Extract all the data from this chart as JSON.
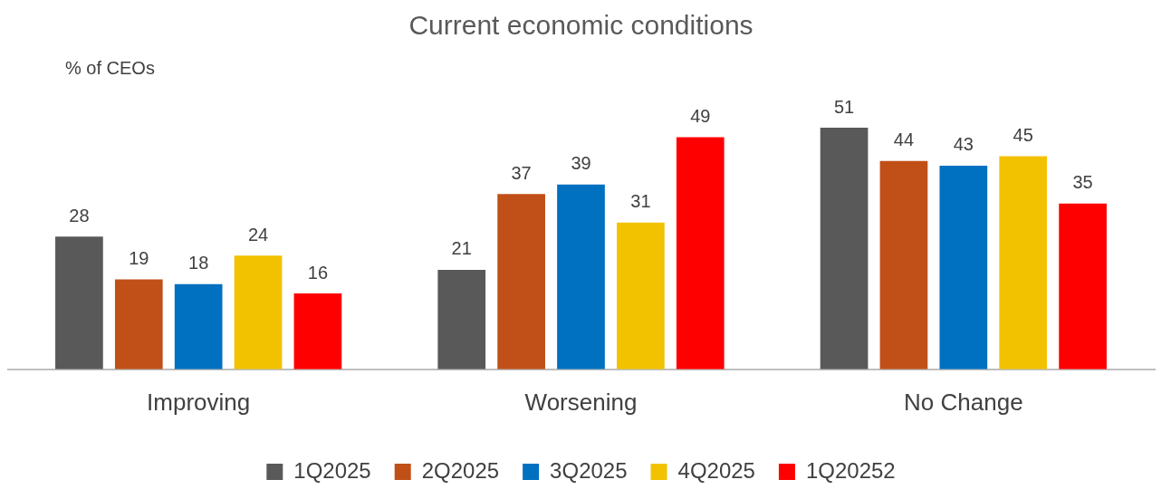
{
  "chart_data": {
    "type": "bar",
    "title": "Current economic conditions",
    "ylabel": "% of CEOs",
    "categories": [
      "Improving",
      "Worsening",
      "No Change"
    ],
    "series": [
      {
        "name": "1Q2025",
        "color": "#595959",
        "values": [
          28,
          21,
          51
        ]
      },
      {
        "name": "2Q2025",
        "color": "#c05017",
        "values": [
          19,
          37,
          44
        ]
      },
      {
        "name": "3Q2025",
        "color": "#0070c0",
        "values": [
          18,
          39,
          43
        ]
      },
      {
        "name": "4Q2025",
        "color": "#f2c200",
        "values": [
          24,
          31,
          45
        ]
      },
      {
        "name": "1Q20252",
        "color": "#ff0000",
        "values": [
          16,
          49,
          35
        ]
      }
    ],
    "data_labels": true,
    "grid": false,
    "legend": "bottom"
  }
}
